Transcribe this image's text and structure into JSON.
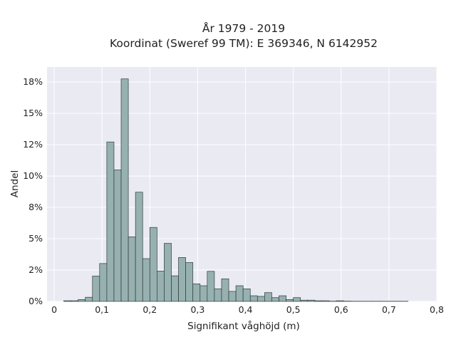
{
  "chart_data": {
    "type": "bar",
    "title_lines": [
      "År 1979 - 2019",
      "Koordinat (Sweref 99 TM): E 369346, N 6142952"
    ],
    "xlabel": "Signifikant våghöjd (m)",
    "ylabel": "Andel",
    "xlim": [
      -0.015,
      0.8
    ],
    "ylim": [
      0,
      0.187
    ],
    "x_ticks": [
      0,
      0.1,
      0.2,
      0.3,
      0.4,
      0.5,
      0.6,
      0.7,
      0.8
    ],
    "x_tick_labels": [
      "0",
      "0,1",
      "0,2",
      "0,3",
      "0,4",
      "0,5",
      "0,6",
      "0,7",
      "0,8"
    ],
    "y_ticks": [
      0,
      0.025,
      0.05,
      0.075,
      0.1,
      0.125,
      0.15,
      0.175
    ],
    "y_tick_labels": [
      "0%",
      "2%",
      "5%",
      "8%",
      "10%",
      "12%",
      "15%",
      "18%"
    ],
    "grid": true,
    "bar_color": "#97b0b0",
    "bar_edge_color": "#2f3d3d",
    "background_color": "#eaeaf2",
    "bin_width": 0.015,
    "bin_start": 0.02,
    "values": [
      0.0005,
      0.0005,
      0.0015,
      0.0033,
      0.0202,
      0.0302,
      0.1272,
      0.1049,
      0.1775,
      0.0515,
      0.0871,
      0.0341,
      0.059,
      0.0242,
      0.0463,
      0.0204,
      0.035,
      0.031,
      0.014,
      0.0125,
      0.024,
      0.01,
      0.018,
      0.008,
      0.0125,
      0.01,
      0.0045,
      0.004,
      0.007,
      0.003,
      0.0045,
      0.0015,
      0.003,
      0.001,
      0.001,
      0.0005,
      0.0005,
      0.0002,
      0.0005,
      0.0002,
      0.0001,
      0.0001,
      0.0001,
      0.0001,
      0.0001,
      0.0001,
      0.0001,
      0.0001
    ]
  }
}
